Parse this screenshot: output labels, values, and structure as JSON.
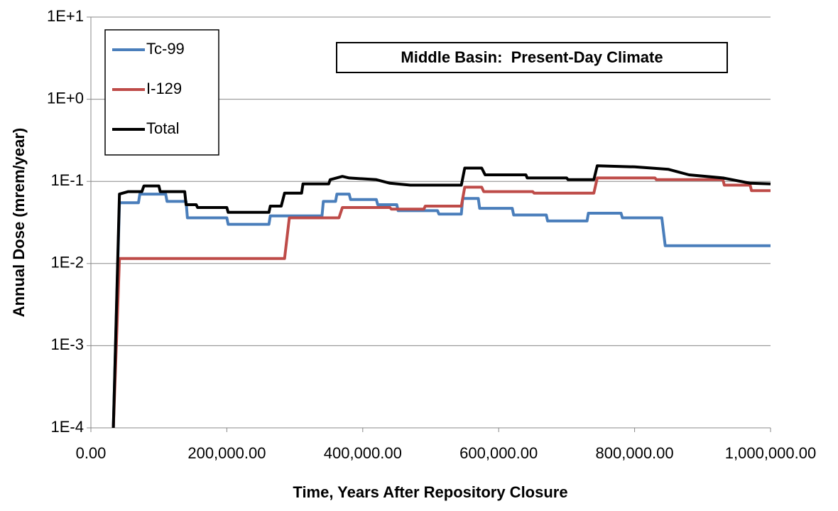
{
  "chart_data": {
    "type": "line",
    "annotation": "Middle Basin:  Present-Day Climate",
    "xlabel": "Time, Years After Repository Closure",
    "ylabel": "Annual Dose (mrem/year)",
    "yscale": "log",
    "grid": true,
    "legend": "upper left",
    "xlim": [
      0,
      1000000
    ],
    "ylim": [
      0.0001,
      10
    ],
    "xticks": [
      {
        "value": 0,
        "label": "0.00"
      },
      {
        "value": 200000,
        "label": "200,000.00"
      },
      {
        "value": 400000,
        "label": "400,000.00"
      },
      {
        "value": 600000,
        "label": "600,000.00"
      },
      {
        "value": 800000,
        "label": "800,000.00"
      },
      {
        "value": 1000000,
        "label": "1,000,000.00"
      }
    ],
    "yticks": [
      {
        "value": 0.0001,
        "label": "1E-4"
      },
      {
        "value": 0.001,
        "label": "1E-3"
      },
      {
        "value": 0.01,
        "label": "1E-2"
      },
      {
        "value": 0.1,
        "label": "1E-1"
      },
      {
        "value": 1,
        "label": "1E+0"
      },
      {
        "value": 10,
        "label": "1E+1"
      }
    ],
    "series": [
      {
        "name": "Tc-99",
        "color": "#4a7ebb",
        "x": [
          33000,
          42000,
          70000,
          72000,
          110000,
          112000,
          140000,
          142000,
          200000,
          202000,
          262000,
          264000,
          340000,
          342000,
          360000,
          362000,
          380000,
          382000,
          420000,
          422000,
          450000,
          452000,
          510000,
          512000,
          545000,
          547000,
          570000,
          572000,
          620000,
          622000,
          670000,
          672000,
          730000,
          732000,
          780000,
          782000,
          840000,
          845000,
          1000000
        ],
        "values": [
          0.0001,
          0.055,
          0.055,
          0.07,
          0.07,
          0.057,
          0.057,
          0.036,
          0.036,
          0.03,
          0.03,
          0.038,
          0.038,
          0.057,
          0.057,
          0.07,
          0.07,
          0.06,
          0.06,
          0.052,
          0.052,
          0.044,
          0.044,
          0.04,
          0.04,
          0.062,
          0.062,
          0.047,
          0.047,
          0.039,
          0.039,
          0.033,
          0.033,
          0.041,
          0.041,
          0.036,
          0.036,
          0.0165,
          0.0165
        ]
      },
      {
        "name": "I-129",
        "color": "#be4b48",
        "x": [
          33000,
          42000,
          285000,
          292000,
          365000,
          370000,
          440000,
          442000,
          490000,
          492000,
          545000,
          550000,
          575000,
          578000,
          650000,
          652000,
          740000,
          745000,
          830000,
          832000,
          930000,
          932000,
          970000,
          972000,
          1000000
        ],
        "values": [
          0.0001,
          0.0115,
          0.0115,
          0.036,
          0.036,
          0.048,
          0.048,
          0.046,
          0.046,
          0.05,
          0.05,
          0.085,
          0.085,
          0.075,
          0.075,
          0.072,
          0.072,
          0.11,
          0.11,
          0.105,
          0.105,
          0.09,
          0.09,
          0.077,
          0.077
        ]
      },
      {
        "name": "Total",
        "color": "#000000",
        "x": [
          33000,
          42000,
          55000,
          75000,
          78000,
          100000,
          102000,
          138000,
          140000,
          155000,
          157000,
          200000,
          202000,
          262000,
          264000,
          280000,
          285000,
          310000,
          312000,
          350000,
          352000,
          370000,
          380000,
          420000,
          440000,
          470000,
          545000,
          550000,
          575000,
          580000,
          640000,
          642000,
          700000,
          702000,
          740000,
          745000,
          800000,
          850000,
          880000,
          930000,
          970000,
          1000000
        ],
        "values": [
          0.0001,
          0.07,
          0.075,
          0.075,
          0.088,
          0.088,
          0.075,
          0.075,
          0.052,
          0.052,
          0.048,
          0.048,
          0.042,
          0.042,
          0.05,
          0.05,
          0.072,
          0.072,
          0.093,
          0.093,
          0.105,
          0.115,
          0.11,
          0.105,
          0.095,
          0.09,
          0.09,
          0.145,
          0.145,
          0.12,
          0.12,
          0.11,
          0.11,
          0.105,
          0.105,
          0.155,
          0.15,
          0.14,
          0.12,
          0.11,
          0.095,
          0.093
        ]
      }
    ]
  }
}
